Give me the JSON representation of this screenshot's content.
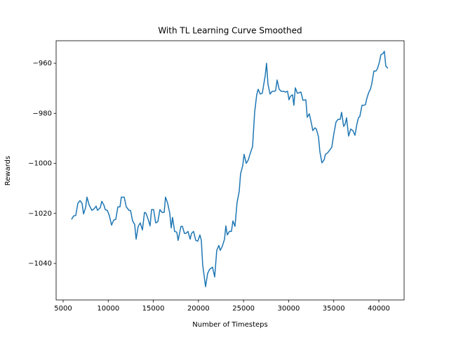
{
  "chart_data": {
    "type": "line",
    "title": "With TL Learning Curve Smoothed",
    "x_label": "Number of Timesteps",
    "y_label": "Rewards",
    "xlim": [
      4222,
      42800
    ],
    "ylim": [
      -1054.6,
      -951
    ],
    "xticks": [
      5000,
      10000,
      15000,
      20000,
      25000,
      30000,
      35000,
      40000
    ],
    "yticks": [
      {
        "value": -1040,
        "label": "−1040"
      },
      {
        "value": -1020,
        "label": "−1020"
      },
      {
        "value": -1000,
        "label": "−1000"
      },
      {
        "value": -980,
        "label": "−980"
      },
      {
        "value": -960,
        "label": "−960"
      }
    ],
    "x": [
      5930,
      6170,
      6400,
      6630,
      6870,
      7100,
      7260,
      7490,
      7640,
      7880,
      8190,
      8420,
      8660,
      8810,
      9120,
      9280,
      9510,
      9670,
      9900,
      10130,
      10370,
      10600,
      10830,
      11070,
      11300,
      11450,
      11770,
      12000,
      12310,
      12470,
      12700,
      12930,
      13090,
      13320,
      13550,
      13790,
      14020,
      14180,
      14410,
      14640,
      14800,
      15030,
      15260,
      15500,
      15730,
      15960,
      16200,
      16350,
      16590,
      16820,
      16980,
      17130,
      17360,
      17600,
      17750,
      18060,
      18220,
      18450,
      18610,
      18840,
      19080,
      19230,
      19460,
      19700,
      19930,
      20160,
      20320,
      20470,
      20790,
      21020,
      21250,
      21560,
      21800,
      22030,
      22260,
      22420,
      22650,
      22890,
      23040,
      23200,
      23430,
      23660,
      23820,
      24050,
      24280,
      24520,
      24670,
      24910,
      25060,
      25300,
      25530,
      25680,
      26000,
      26230,
      26460,
      26620,
      26850,
      27080,
      27240,
      27400,
      27550,
      27710,
      27940,
      28170,
      28410,
      28560,
      28720,
      28950,
      29180,
      29420,
      29650,
      29880,
      30040,
      30190,
      30430,
      30580,
      30740,
      30970,
      31130,
      31360,
      31590,
      31910,
      32060,
      32290,
      32530,
      32680,
      32920,
      33070,
      33310,
      33460,
      33690,
      33930,
      34080,
      34320,
      34550,
      34780,
      35020,
      35250,
      35480,
      35720,
      35870,
      36100,
      36260,
      36420,
      36650,
      36880,
      37120,
      37350,
      37580,
      37740,
      37890,
      38130,
      38360,
      38520,
      38670,
      38900,
      39060,
      39210,
      39450,
      39680,
      39840,
      40070,
      40230,
      40460,
      40610,
      40770,
      41000
    ],
    "series": [
      {
        "name": "reward",
        "color": "#1f77b4",
        "values": [
          -1022.4,
          -1021,
          -1020.8,
          -1016,
          -1014.9,
          -1016,
          -1020.2,
          -1017.7,
          -1013.5,
          -1016.6,
          -1018.8,
          -1018.2,
          -1017.1,
          -1018.8,
          -1017.7,
          -1015.2,
          -1016.6,
          -1018.5,
          -1018.8,
          -1021,
          -1024.7,
          -1022.7,
          -1022.4,
          -1017.4,
          -1017.4,
          -1013.5,
          -1013.5,
          -1017.4,
          -1018.8,
          -1018.8,
          -1023,
          -1024.4,
          -1030.3,
          -1025.2,
          -1023.8,
          -1026.6,
          -1019.6,
          -1019.9,
          -1022.2,
          -1025,
          -1018.5,
          -1018.5,
          -1023.8,
          -1023.3,
          -1018.5,
          -1019.6,
          -1019.6,
          -1013.5,
          -1016,
          -1019.9,
          -1025.8,
          -1021.6,
          -1027.2,
          -1027.5,
          -1030.8,
          -1025.2,
          -1025.2,
          -1028,
          -1028,
          -1027.2,
          -1030.3,
          -1028,
          -1027.2,
          -1030.8,
          -1031.1,
          -1028.6,
          -1030.8,
          -1040.6,
          -1049.3,
          -1044,
          -1042.3,
          -1041.5,
          -1045.4,
          -1034.8,
          -1032.8,
          -1034.8,
          -1033.1,
          -1030.3,
          -1025,
          -1028.6,
          -1027.2,
          -1027.2,
          -1023,
          -1025.2,
          -1015.7,
          -1011.2,
          -1004.2,
          -1000.9,
          -996.4,
          -1000,
          -998.6,
          -996.7,
          -993.3,
          -979.6,
          -972.6,
          -970.4,
          -972.3,
          -972,
          -968.4,
          -965,
          -960,
          -968.4,
          -972.3,
          -971.2,
          -971.2,
          -970.9,
          -966.7,
          -970.4,
          -971.2,
          -971.2,
          -971.5,
          -971.2,
          -974.6,
          -973.2,
          -972.6,
          -976.8,
          -969.8,
          -972,
          -971.8,
          -971.5,
          -974.8,
          -974.6,
          -981.6,
          -980.2,
          -984.1,
          -986.9,
          -985.8,
          -986.3,
          -989.4,
          -995.3,
          -999.8,
          -998.6,
          -996.4,
          -995.8,
          -994.7,
          -993.6,
          -988,
          -983.5,
          -982.4,
          -982.4,
          -979.6,
          -985.2,
          -984.4,
          -981.8,
          -989.1,
          -986.3,
          -986.9,
          -988.8,
          -984.1,
          -981.8,
          -981.3,
          -976.8,
          -976.8,
          -976.5,
          -974,
          -971.5,
          -970.4,
          -968.4,
          -963.1,
          -963.1,
          -962.2,
          -959.4,
          -956.6,
          -956.1,
          -955.2,
          -961.1,
          -962
        ]
      }
    ]
  }
}
